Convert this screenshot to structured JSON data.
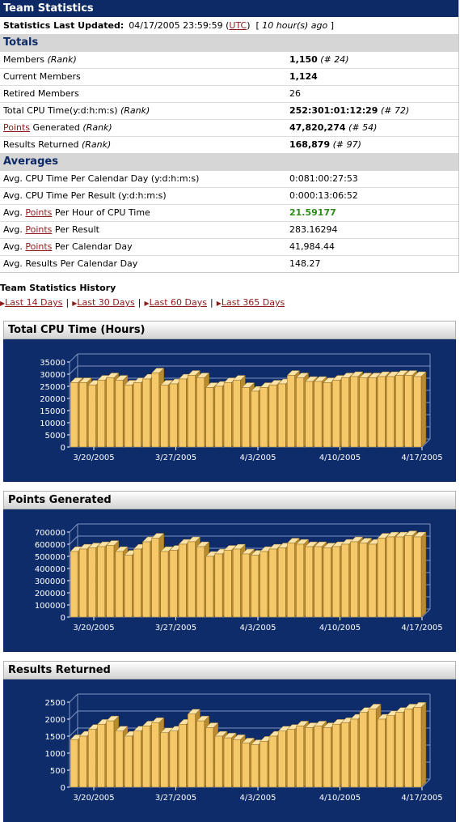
{
  "header": {
    "title": "Team Statistics"
  },
  "updated": {
    "label": "Statistics Last Updated:",
    "date": "04/17/2005 23:59:59",
    "tz_link": "UTC",
    "ago": "10 hour(s) ago"
  },
  "totals": {
    "heading": "Totals",
    "rows": [
      {
        "label": "Members",
        "rank_label": "(Rank)",
        "value": "1,150",
        "rank": "(# 24)"
      },
      {
        "label": "Current Members",
        "value": "1,124"
      },
      {
        "label": "Retired Members",
        "value": "26"
      },
      {
        "label": "Total CPU Time(y:d:h:m:s)",
        "rank_label": "(Rank)",
        "value": "252:301:01:12:29",
        "rank": "(# 72)"
      },
      {
        "link": "Points",
        "label": "Generated",
        "rank_label": "(Rank)",
        "value": "47,820,274",
        "rank": "(# 54)"
      },
      {
        "label": "Results Returned",
        "rank_label": "(Rank)",
        "value": "168,879",
        "rank": "(# 97)"
      }
    ]
  },
  "averages": {
    "heading": "Averages",
    "rows": [
      {
        "pre": "Avg. CPU Time Per Calendar Day (y:d:h:m:s)",
        "value": "0:081:00:27:53"
      },
      {
        "pre": "Avg. CPU Time Per Result (y:d:h:m:s)",
        "value": "0:000:13:06:52"
      },
      {
        "pre": "Avg.",
        "link": "Points",
        "post": "Per Hour of CPU Time",
        "value": "21.59177"
      },
      {
        "pre": "Avg.",
        "link": "Points",
        "post": "Per Result",
        "value": "283.16294"
      },
      {
        "pre": "Avg.",
        "link": "Points",
        "post": "Per Calendar Day",
        "value": "41,984.44"
      },
      {
        "pre": "Avg. Results Per Calendar Day",
        "value": "148.27"
      }
    ]
  },
  "history": {
    "title": "Team Statistics History",
    "links": [
      "Last 14 Days",
      "Last 30 Days",
      "Last 60 Days",
      "Last 365 Days"
    ]
  },
  "colors": {
    "header_bg": "#0e2a66",
    "chart_bg": "#0e2c6a",
    "bar": "#f5c86a",
    "link": "#8b1a1a",
    "highlight": "#2e8b1a"
  },
  "chart_data": [
    {
      "type": "bar",
      "title": "Total CPU Time (Hours)",
      "ylim": [
        0,
        35000
      ],
      "yticks": [
        0,
        5000,
        10000,
        15000,
        20000,
        25000,
        30000,
        35000
      ],
      "xtick_labels": [
        "3/20/2005",
        "3/27/2005",
        "4/3/2005",
        "4/10/2005",
        "4/17/2005"
      ],
      "values": [
        26500,
        26500,
        25500,
        27500,
        28500,
        27500,
        25500,
        26500,
        28000,
        30500,
        25500,
        26000,
        28000,
        29500,
        28500,
        24500,
        25000,
        26500,
        27500,
        24500,
        23000,
        24500,
        25500,
        26000,
        29500,
        28500,
        27000,
        27000,
        26500,
        27500,
        28500,
        29000,
        28500,
        28500,
        29000,
        29000,
        29500,
        29500,
        29000
      ]
    },
    {
      "type": "bar",
      "title": "Points Generated",
      "ylim": [
        0,
        700000
      ],
      "yticks": [
        0,
        100000,
        200000,
        300000,
        400000,
        500000,
        600000,
        700000
      ],
      "xtick_labels": [
        "3/20/2005",
        "3/27/2005",
        "4/3/2005",
        "4/10/2005",
        "4/17/2005"
      ],
      "values": [
        540000,
        560000,
        570000,
        580000,
        590000,
        540000,
        510000,
        560000,
        620000,
        650000,
        540000,
        550000,
        600000,
        620000,
        580000,
        500000,
        520000,
        550000,
        560000,
        520000,
        510000,
        540000,
        560000,
        570000,
        610000,
        600000,
        580000,
        580000,
        570000,
        580000,
        600000,
        620000,
        610000,
        600000,
        650000,
        660000,
        660000,
        670000,
        660000
      ]
    },
    {
      "type": "bar",
      "title": "Results Returned",
      "ylim": [
        0,
        2500
      ],
      "yticks": [
        0,
        500,
        1000,
        1500,
        2000,
        2500
      ],
      "xtick_labels": [
        "3/20/2005",
        "3/27/2005",
        "4/3/2005",
        "4/10/2005",
        "4/17/2005"
      ],
      "values": [
        1400,
        1500,
        1700,
        1850,
        1950,
        1650,
        1500,
        1650,
        1800,
        1900,
        1600,
        1650,
        1850,
        2150,
        1950,
        1750,
        1500,
        1450,
        1400,
        1300,
        1250,
        1350,
        1500,
        1650,
        1700,
        1800,
        1750,
        1800,
        1750,
        1850,
        1900,
        2000,
        2200,
        2300,
        2000,
        2100,
        2200,
        2300,
        2350
      ]
    }
  ]
}
